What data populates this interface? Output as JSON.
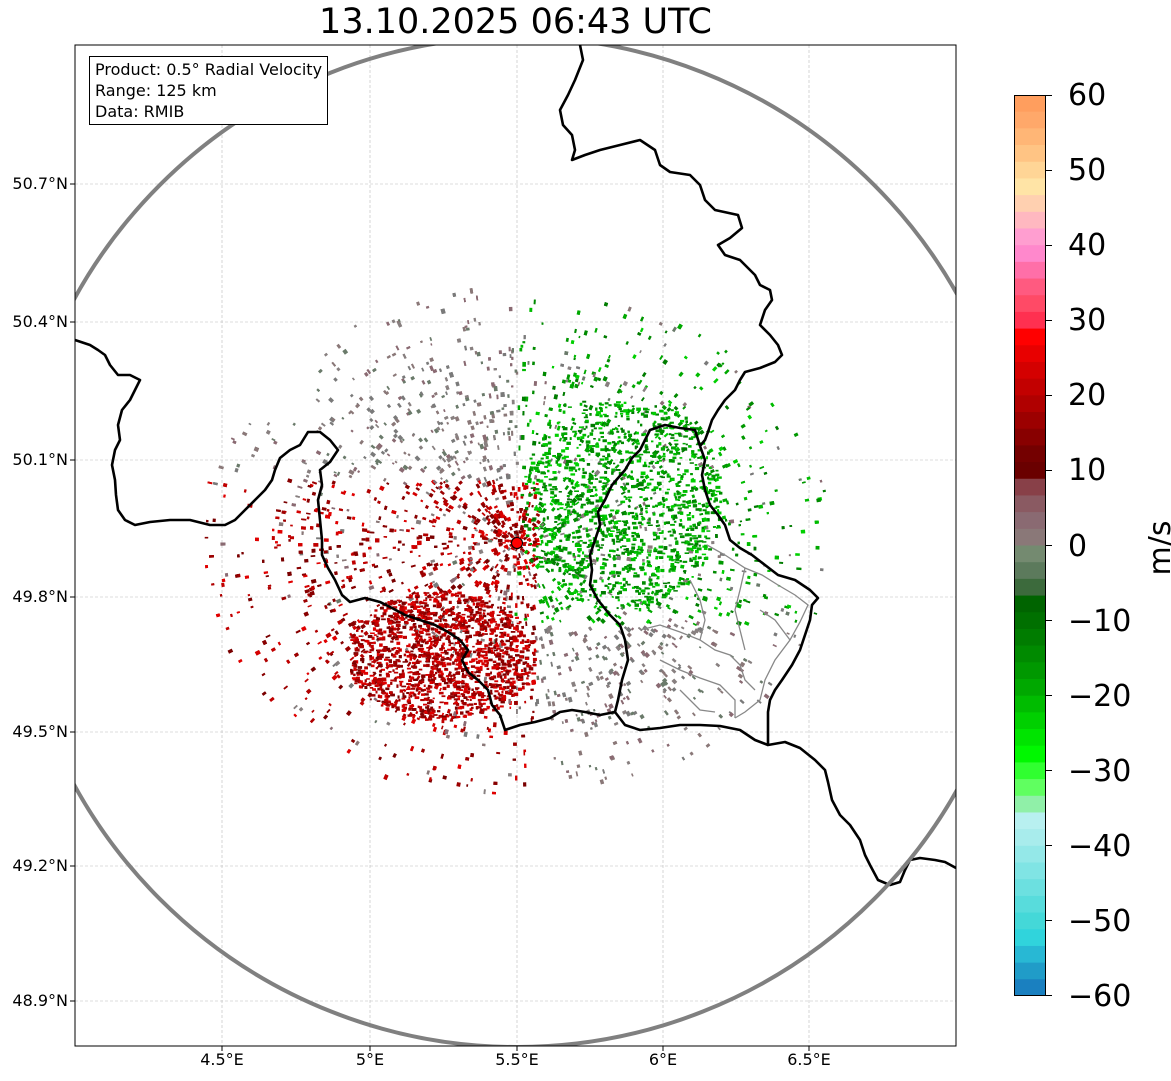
{
  "title": "13.10.2025 06:43 UTC",
  "info": {
    "product": "Product: 0.5° Radial Velocity",
    "range": "Range: 125 km",
    "data": "Data: RMIB"
  },
  "latitude_labels": [
    "50.7°N",
    "50.4°N",
    "50.1°N",
    "49.8°N",
    "49.5°N",
    "49.2°N",
    "48.9°N"
  ],
  "longitude_labels": [
    "4.5°E",
    "5°E",
    "5.5°E",
    "6°E",
    "6.5°E"
  ],
  "colorbar": {
    "unit": "m/s",
    "labels": [
      "60",
      "50",
      "40",
      "30",
      "20",
      "10",
      "0",
      "−10",
      "−20",
      "−30",
      "−40",
      "−50",
      "−60"
    ],
    "min": -60,
    "max": 60
  },
  "map": {
    "extent_lon": [
      4.0,
      7.0
    ],
    "extent_lat": [
      48.8,
      51.0
    ],
    "radar_site": {
      "lon": 5.505,
      "lat": 49.915
    },
    "range_ring_km": 125
  }
}
